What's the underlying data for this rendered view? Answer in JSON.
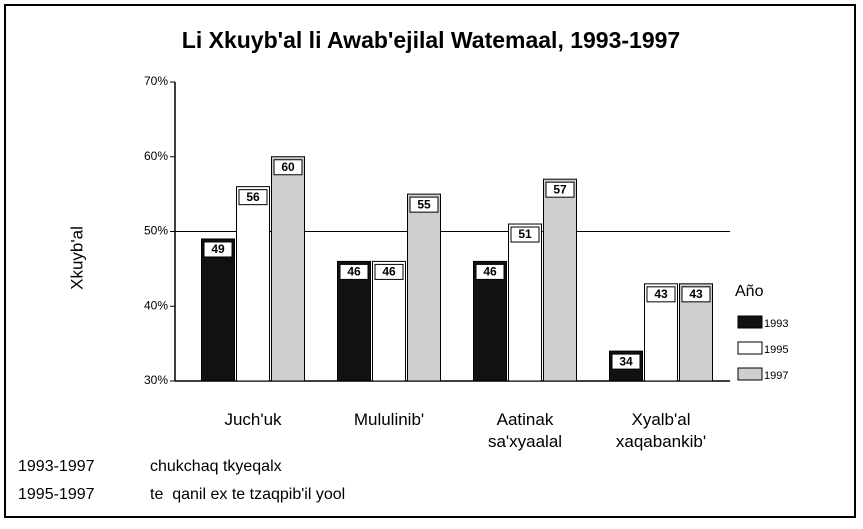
{
  "chart_data": {
    "type": "bar",
    "title": "Li Xkuyb'al li Awab'ejilal Watemaal, 1993-1997",
    "ylabel": "Xkuyb'al",
    "categories": [
      "Juch'uk",
      "Mululinib'",
      "Aatinak sa'xyaalal",
      "Xyalb'al xaqabankib'"
    ],
    "series": [
      {
        "name": "1993",
        "color": "#111111",
        "values": [
          49,
          46,
          46,
          34
        ]
      },
      {
        "name": "1995",
        "color": "#ffffff",
        "values": [
          56,
          46,
          51,
          43
        ]
      },
      {
        "name": "1997",
        "color": "#cfcfcf",
        "values": [
          60,
          55,
          57,
          43
        ]
      }
    ],
    "ylim": [
      30,
      70
    ],
    "yticks": [
      {
        "value": 30,
        "label": "30%"
      },
      {
        "value": 40,
        "label": "40%"
      },
      {
        "value": 50,
        "label": "50%"
      },
      {
        "value": 60,
        "label": "60%"
      },
      {
        "value": 70,
        "label": "70%"
      }
    ],
    "reference_line": 50,
    "legend_title": "Año",
    "legend": "right",
    "notes": [
      {
        "years": "1993-1997",
        "text": "chukchaq tkyeqalx"
      },
      {
        "years": "1995-1997",
        "text": "te  qanil ex te tzaqpib'il yool"
      }
    ]
  }
}
